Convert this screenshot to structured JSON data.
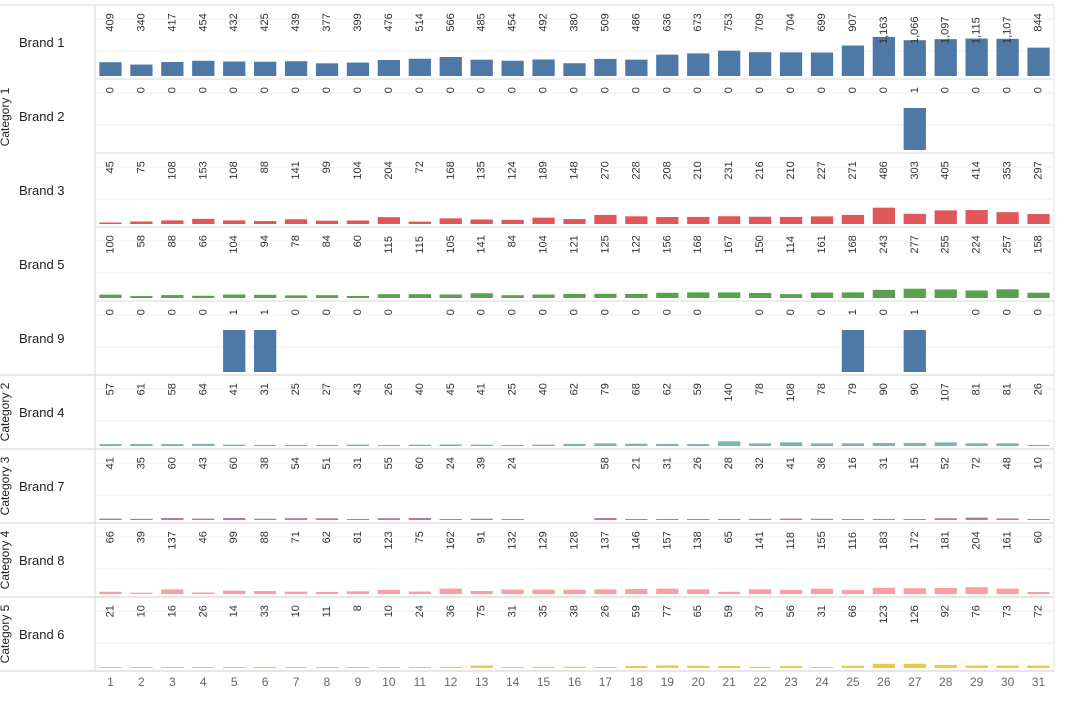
{
  "chart_data": {
    "type": "bar",
    "layout": "small-multiples",
    "x_categories": [
      "1",
      "2",
      "3",
      "4",
      "5",
      "6",
      "7",
      "8",
      "9",
      "10",
      "11",
      "12",
      "13",
      "14",
      "15",
      "16",
      "17",
      "18",
      "19",
      "20",
      "21",
      "22",
      "23",
      "24",
      "25",
      "26",
      "27",
      "28",
      "29",
      "30",
      "31"
    ],
    "groups": [
      {
        "name": "Category 1",
        "rows": [
          "Brand 1",
          "Brand 2",
          "Brand 3",
          "Brand 5",
          "Brand 9"
        ]
      },
      {
        "name": "Category 2",
        "rows": [
          "Brand 4"
        ]
      },
      {
        "name": "Category 3",
        "rows": [
          "Brand 7"
        ]
      },
      {
        "name": "Category 4",
        "rows": [
          "Brand 8"
        ]
      },
      {
        "name": "Category 5",
        "rows": [
          "Brand 6"
        ]
      }
    ],
    "series": [
      {
        "name": "Brand 1",
        "color": "#4e79a7",
        "ymax": 1250,
        "values": [
          409,
          340,
          417,
          454,
          432,
          425,
          439,
          377,
          399,
          476,
          514,
          566,
          485,
          454,
          492,
          380,
          509,
          486,
          636,
          673,
          753,
          709,
          704,
          699,
          907,
          1163,
          1066,
          1097,
          1115,
          1107,
          844
        ]
      },
      {
        "name": "Brand 2",
        "color": "#4e79a7",
        "ymax": 1,
        "values": [
          0,
          0,
          0,
          0,
          0,
          0,
          0,
          0,
          0,
          0,
          0,
          0,
          0,
          0,
          0,
          0,
          0,
          0,
          0,
          0,
          0,
          0,
          0,
          0,
          0,
          0,
          1,
          0,
          0,
          0,
          0
        ]
      },
      {
        "name": "Brand 3",
        "color": "#e15759",
        "ymax": 1250,
        "values": [
          45,
          75,
          108,
          153,
          108,
          88,
          141,
          99,
          104,
          204,
          72,
          168,
          135,
          124,
          189,
          148,
          270,
          228,
          208,
          210,
          231,
          216,
          210,
          227,
          271,
          486,
          303,
          405,
          414,
          353,
          297
        ]
      },
      {
        "name": "Brand 5",
        "color": "#59a14f",
        "ymax": 1250,
        "values": [
          100,
          58,
          88,
          66,
          104,
          94,
          78,
          84,
          60,
          115,
          115,
          105,
          141,
          84,
          104,
          121,
          125,
          122,
          156,
          168,
          167,
          150,
          114,
          161,
          168,
          243,
          277,
          255,
          224,
          257,
          158
        ]
      },
      {
        "name": "Brand 9",
        "color": "#4e79a7",
        "ymax": 1,
        "values": [
          0,
          0,
          0,
          0,
          1,
          1,
          0,
          0,
          0,
          0,
          null,
          0,
          0,
          0,
          0,
          0,
          0,
          0,
          0,
          0,
          null,
          0,
          0,
          0,
          1,
          0,
          1,
          null,
          0,
          0,
          0
        ]
      },
      {
        "name": "Brand 4",
        "color": "#76b7b2",
        "ymax": 1250,
        "values": [
          57,
          61,
          58,
          64,
          41,
          31,
          25,
          27,
          43,
          26,
          40,
          45,
          41,
          25,
          40,
          62,
          79,
          68,
          62,
          59,
          140,
          78,
          108,
          78,
          79,
          90,
          90,
          107,
          81,
          81,
          26
        ]
      },
      {
        "name": "Brand 7",
        "color": "#b07aa1",
        "ymax": 1250,
        "values": [
          41,
          35,
          60,
          43,
          60,
          38,
          54,
          51,
          31,
          55,
          60,
          24,
          39,
          24,
          null,
          null,
          58,
          21,
          31,
          26,
          28,
          32,
          41,
          36,
          16,
          31,
          15,
          52,
          72,
          48,
          10
        ]
      },
      {
        "name": "Brand 8",
        "color": "#ff9da7",
        "ymax": 1250,
        "values": [
          66,
          39,
          137,
          46,
          99,
          88,
          71,
          62,
          81,
          123,
          75,
          162,
          91,
          132,
          129,
          128,
          137,
          146,
          157,
          138,
          65,
          141,
          118,
          155,
          116,
          183,
          172,
          181,
          204,
          161,
          60
        ]
      },
      {
        "name": "Brand 6",
        "color": "#edc948",
        "ymax": 1250,
        "values": [
          21,
          10,
          16,
          26,
          14,
          33,
          10,
          11,
          8,
          10,
          24,
          36,
          75,
          31,
          35,
          38,
          26,
          59,
          77,
          65,
          59,
          37,
          56,
          31,
          66,
          123,
          126,
          92,
          76,
          73,
          72
        ]
      }
    ],
    "title": "",
    "xlabel": "",
    "ylabel": "",
    "grid": true,
    "legend": "none"
  }
}
